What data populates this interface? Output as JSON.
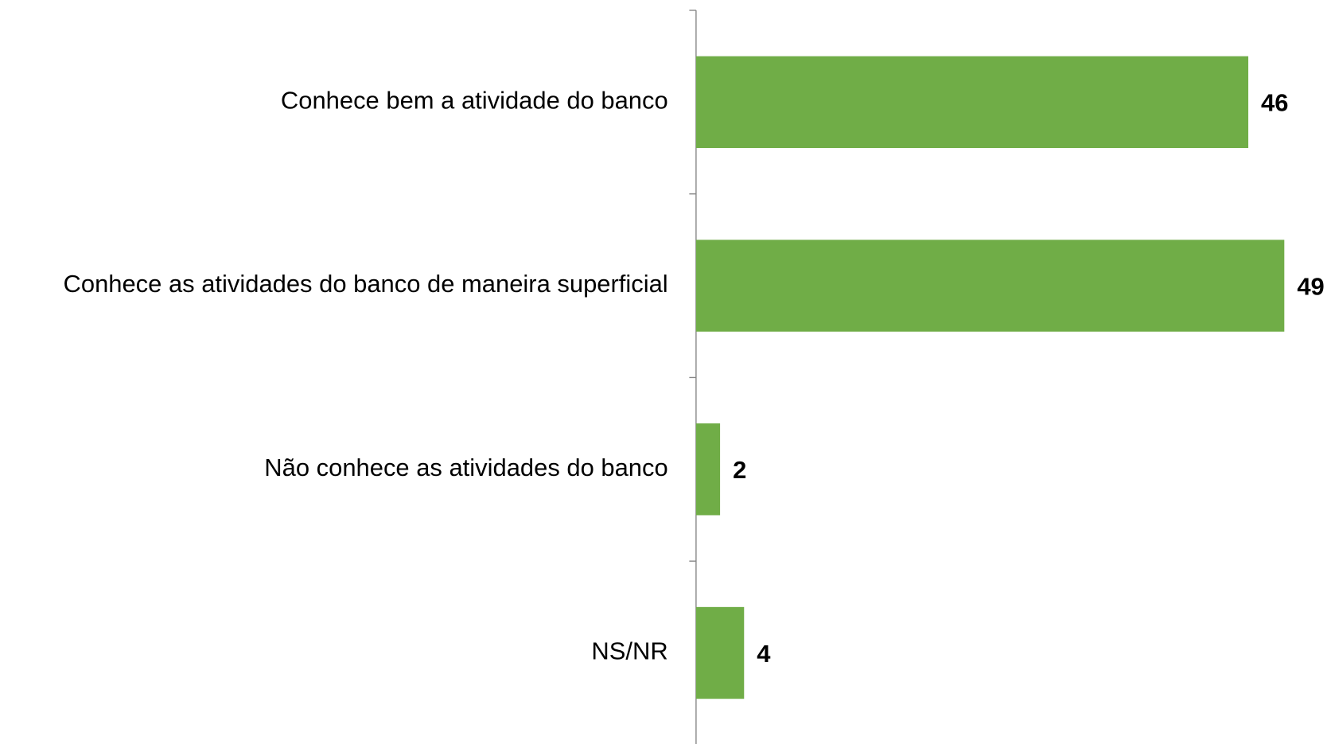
{
  "chart_data": {
    "type": "bar",
    "orientation": "horizontal",
    "categories": [
      "Conhece bem a atividade do banco",
      "Conhece as atividades do banco de maneira superficial",
      "Não conhece as atividades do banco",
      "NS/NR"
    ],
    "values": [
      46,
      49,
      2,
      4
    ],
    "color": "#70ad47"
  }
}
